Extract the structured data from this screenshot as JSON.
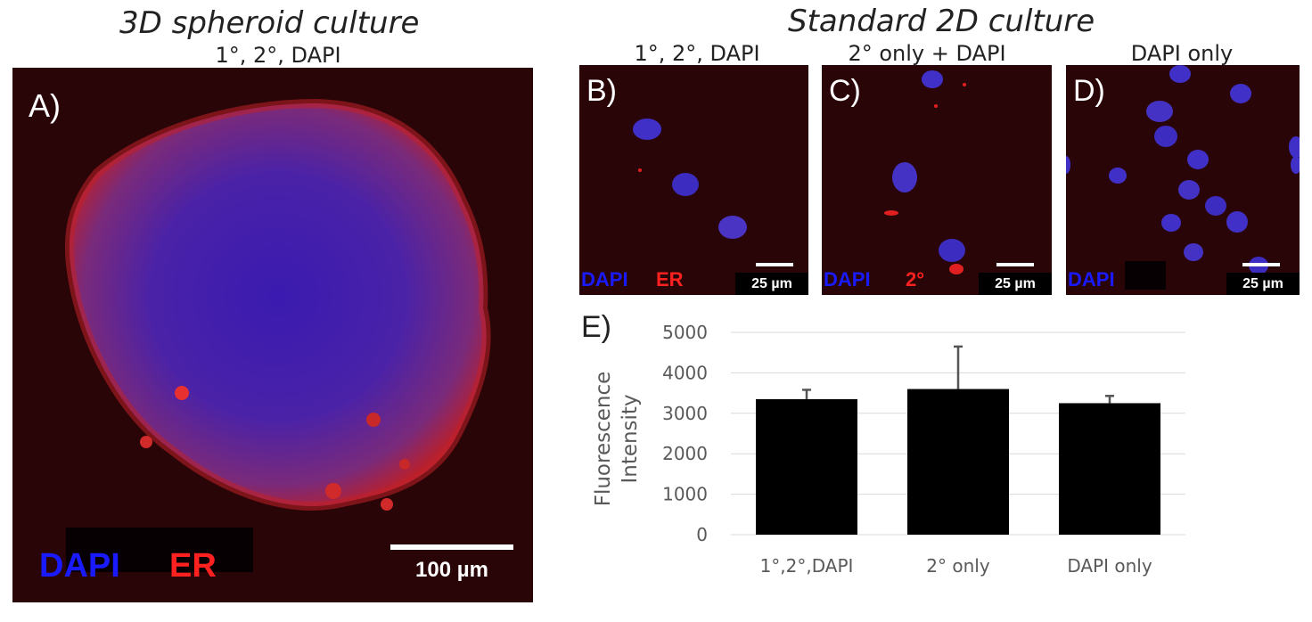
{
  "titles": {
    "left": "3D spheroid culture",
    "right": "Standard 2D culture"
  },
  "panels": {
    "A": {
      "label": "A)",
      "subtitle": "1°, 2°, DAPI",
      "legend1": "DAPI",
      "legend2": "ER",
      "scale": "100 µm"
    },
    "B": {
      "label": "B)",
      "subtitle": "1°, 2°, DAPI",
      "legend1": "DAPI",
      "legend2": "ER",
      "scale": "25 µm"
    },
    "C": {
      "label": "C)",
      "subtitle": "2° only + DAPI",
      "legend1": "DAPI",
      "legend2": "2°",
      "scale": "25 µm"
    },
    "D": {
      "label": "D)",
      "subtitle": "DAPI only",
      "legend1": "DAPI",
      "scale": "25 µm"
    }
  },
  "colors": {
    "dapi": "#1a1aff",
    "er": "#ff2020",
    "bar": "#000000",
    "grid": "#d9d9d9",
    "axis_text": "#595959"
  },
  "chart_data": {
    "panel_label": "E)",
    "type": "bar",
    "categories": [
      "1°,2°,DAPI",
      "2° only",
      "DAPI only"
    ],
    "values": [
      3350,
      3600,
      3250
    ],
    "errors": [
      230,
      1050,
      180
    ],
    "ylabel_line1": "Fluorescence",
    "ylabel_line2": "Intensity",
    "ylim": [
      0,
      5000
    ],
    "yticks": [
      0,
      1000,
      2000,
      3000,
      4000,
      5000
    ],
    "grid": true
  }
}
